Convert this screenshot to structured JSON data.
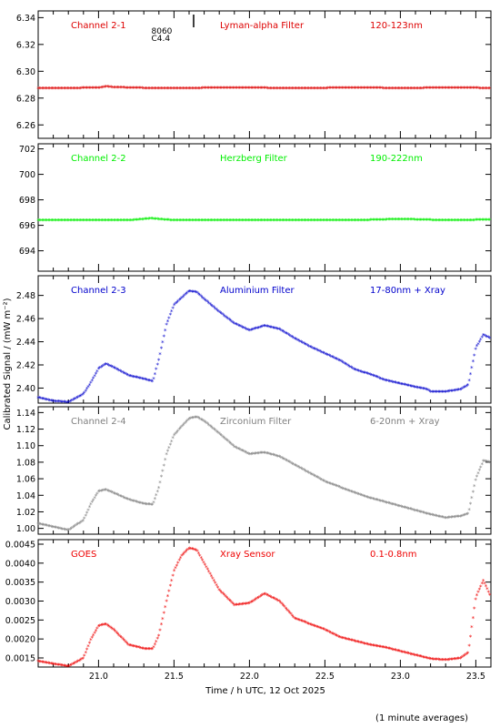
{
  "x_axis": {
    "label": "Time / h UTC, 12 Oct 2025",
    "range": [
      20.6,
      23.6
    ],
    "ticks": [
      21.0,
      21.5,
      22.0,
      22.5,
      23.0,
      23.5
    ],
    "tick_labels": [
      "21.0",
      "21.5",
      "22.0",
      "22.5",
      "23.0",
      "23.5"
    ]
  },
  "y_axis_label": "Calibrated Signal / (mW m⁻²)",
  "footnote": "(1 minute averages)",
  "chart_data": [
    {
      "type": "scatter",
      "channel": "Channel 2-1",
      "filter": "Lyman-alpha Filter",
      "band": "120-123nm",
      "color": "#dd0000",
      "ylim": [
        6.25,
        6.345
      ],
      "yticks": [
        6.26,
        6.28,
        6.3,
        6.32,
        6.34
      ],
      "ytick_labels": [
        "6.26",
        "6.28",
        "6.30",
        "6.32",
        "6.34"
      ],
      "annotations": {
        "marker_time": 21.63,
        "lines": [
          "8060",
          "C4.4"
        ]
      },
      "series": [
        {
          "x": [
            20.6,
            20.8,
            21.0,
            21.05,
            21.1,
            21.3,
            21.6,
            21.9,
            22.2,
            22.5,
            22.7,
            22.9,
            23.1,
            23.3,
            23.6
          ],
          "y": [
            6.2875,
            6.2875,
            6.2878,
            6.2888,
            6.2882,
            6.2876,
            6.2876,
            6.2877,
            6.2876,
            6.2876,
            6.2879,
            6.2876,
            6.2876,
            6.2877,
            6.2876
          ]
        }
      ]
    },
    {
      "type": "scatter",
      "channel": "Channel 2-2",
      "filter": "Herzberg Filter",
      "band": "190-222nm",
      "color": "#00ee00",
      "ylim": [
        692.4,
        702.4
      ],
      "yticks": [
        694,
        696,
        698,
        700,
        702
      ],
      "ytick_labels": [
        "694",
        "696",
        "698",
        "700",
        "702"
      ],
      "series": [
        {
          "x": [
            20.6,
            20.9,
            21.2,
            21.35,
            21.5,
            21.8,
            22.1,
            22.4,
            22.7,
            23.0,
            23.3,
            23.6
          ],
          "y": [
            696.4,
            696.4,
            696.4,
            696.55,
            696.4,
            696.4,
            696.4,
            696.4,
            696.4,
            696.5,
            696.4,
            696.45
          ]
        }
      ]
    },
    {
      "type": "scatter",
      "channel": "Channel 2-3",
      "filter": "Aluminium Filter",
      "band": "17-80nm + Xray",
      "color": "#0000cc",
      "ylim": [
        2.387,
        2.497
      ],
      "yticks": [
        2.4,
        2.42,
        2.44,
        2.46,
        2.48
      ],
      "ytick_labels": [
        "2.40",
        "2.42",
        "2.44",
        "2.46",
        "2.48"
      ],
      "series": [
        {
          "x": [
            20.6,
            20.7,
            20.8,
            20.9,
            20.95,
            21.0,
            21.05,
            21.1,
            21.2,
            21.3,
            21.36,
            21.4,
            21.45,
            21.5,
            21.6,
            21.65,
            21.7,
            21.8,
            21.9,
            22.0,
            22.1,
            22.2,
            22.3,
            22.4,
            22.5,
            22.6,
            22.7,
            22.8,
            22.9,
            23.0,
            23.1,
            23.18,
            23.2,
            23.3,
            23.4,
            23.45,
            23.5,
            23.55,
            23.6
          ],
          "y": [
            2.392,
            2.389,
            2.388,
            2.395,
            2.405,
            2.417,
            2.421,
            2.418,
            2.411,
            2.408,
            2.406,
            2.425,
            2.455,
            2.472,
            2.484,
            2.483,
            2.477,
            2.466,
            2.456,
            2.45,
            2.454,
            2.451,
            2.443,
            2.436,
            2.43,
            2.424,
            2.416,
            2.412,
            2.407,
            2.404,
            2.401,
            2.399,
            2.397,
            2.397,
            2.399,
            2.403,
            2.435,
            2.446,
            2.443
          ]
        }
      ]
    },
    {
      "type": "scatter",
      "channel": "Channel 2-4",
      "filter": "Zirconium Filter",
      "band": "6-20nm + Xray",
      "color": "#808080",
      "ylim": [
        0.993,
        1.147
      ],
      "yticks": [
        1.0,
        1.02,
        1.04,
        1.06,
        1.08,
        1.1,
        1.12,
        1.14
      ],
      "ytick_labels": [
        "1.00",
        "1.02",
        "1.04",
        "1.06",
        "1.08",
        "1.10",
        "1.12",
        "1.14"
      ],
      "series": [
        {
          "x": [
            20.6,
            20.7,
            20.8,
            20.9,
            20.95,
            21.0,
            21.05,
            21.1,
            21.2,
            21.3,
            21.36,
            21.4,
            21.45,
            21.5,
            21.6,
            21.65,
            21.7,
            21.8,
            21.9,
            22.0,
            22.1,
            22.2,
            22.3,
            22.4,
            22.5,
            22.6,
            22.7,
            22.8,
            22.9,
            23.0,
            23.1,
            23.2,
            23.3,
            23.4,
            23.45,
            23.5,
            23.55,
            23.6
          ],
          "y": [
            1.006,
            1.002,
            0.998,
            1.01,
            1.03,
            1.045,
            1.047,
            1.043,
            1.035,
            1.03,
            1.029,
            1.05,
            1.09,
            1.113,
            1.133,
            1.135,
            1.13,
            1.115,
            1.099,
            1.09,
            1.092,
            1.087,
            1.077,
            1.067,
            1.057,
            1.05,
            1.043,
            1.037,
            1.032,
            1.027,
            1.022,
            1.017,
            1.013,
            1.015,
            1.018,
            1.06,
            1.082,
            1.08
          ]
        }
      ]
    },
    {
      "type": "scatter",
      "channel": "GOES",
      "filter": "Xray Sensor",
      "band": "0.1-0.8nm",
      "color": "#ee0000",
      "ylim": [
        0.00126,
        0.00462
      ],
      "yticks": [
        0.0015,
        0.002,
        0.0025,
        0.003,
        0.0035,
        0.004,
        0.0045
      ],
      "ytick_labels": [
        "0.0015",
        "0.0020",
        "0.0025",
        "0.0030",
        "0.0035",
        "0.0040",
        "0.0045"
      ],
      "series": [
        {
          "x": [
            20.6,
            20.7,
            20.8,
            20.9,
            20.95,
            21.0,
            21.05,
            21.1,
            21.2,
            21.3,
            21.36,
            21.4,
            21.45,
            21.5,
            21.55,
            21.6,
            21.65,
            21.7,
            21.8,
            21.9,
            22.0,
            22.1,
            22.2,
            22.3,
            22.4,
            22.5,
            22.6,
            22.7,
            22.8,
            22.9,
            23.0,
            23.1,
            23.2,
            23.3,
            23.4,
            23.45,
            23.5,
            23.55,
            23.6
          ],
          "y": [
            0.00142,
            0.00135,
            0.00128,
            0.0015,
            0.002,
            0.00235,
            0.0024,
            0.00225,
            0.00185,
            0.00175,
            0.00175,
            0.0021,
            0.003,
            0.0038,
            0.0042,
            0.0044,
            0.00435,
            0.004,
            0.0033,
            0.0029,
            0.00295,
            0.0032,
            0.003,
            0.00255,
            0.0024,
            0.00225,
            0.00205,
            0.00195,
            0.00185,
            0.00178,
            0.00168,
            0.00158,
            0.00148,
            0.00145,
            0.0015,
            0.00165,
            0.0031,
            0.00355,
            0.0031
          ]
        }
      ]
    }
  ]
}
